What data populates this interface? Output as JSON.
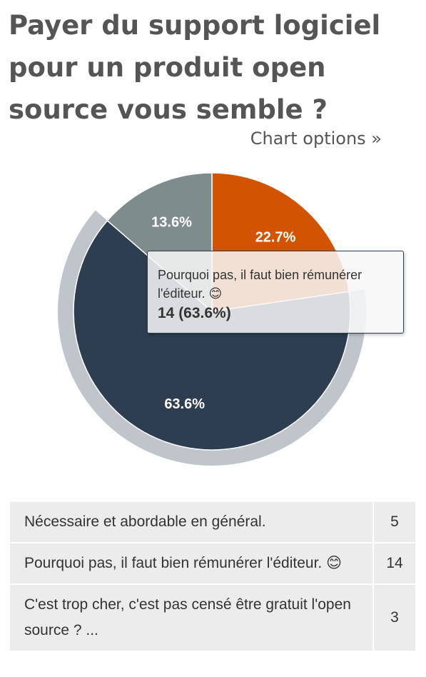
{
  "title": "Payer du support logiciel pour un produit open source vous semble ?",
  "chart_options_link": "Chart options »",
  "chart_data": {
    "type": "pie",
    "title": "Payer du support logiciel pour un produit open source vous semble ?",
    "slices": [
      {
        "name": "Nécessaire et abordable en général.",
        "value": 5,
        "percent_label": "22.7%",
        "color": "#d35400"
      },
      {
        "name": "Pourquoi pas, il faut bien rémunérer l'éditeur. 😊",
        "value": 14,
        "percent_label": "63.6%",
        "color": "#2c3e50"
      },
      {
        "name": "C'est trop cher, c'est pas censé être gratuit l'open source ? ...",
        "value": 3,
        "percent_label": "13.6%",
        "color": "#7f8c8d"
      }
    ],
    "highlighted_slice": 1
  },
  "tooltip": {
    "name": "Pourquoi pas, il faut bien rémunérer l'éditeur. 😊",
    "value": "14 (63.6%)"
  },
  "results_table": [
    {
      "answer": "Nécessaire et abordable en général.",
      "count": "5"
    },
    {
      "answer": "Pourquoi pas, il faut bien rémunérer l'éditeur. 😊",
      "count": "14"
    },
    {
      "answer": "C'est trop cher, c'est pas censé être gratuit l'open source ? ...",
      "count": "3"
    }
  ]
}
